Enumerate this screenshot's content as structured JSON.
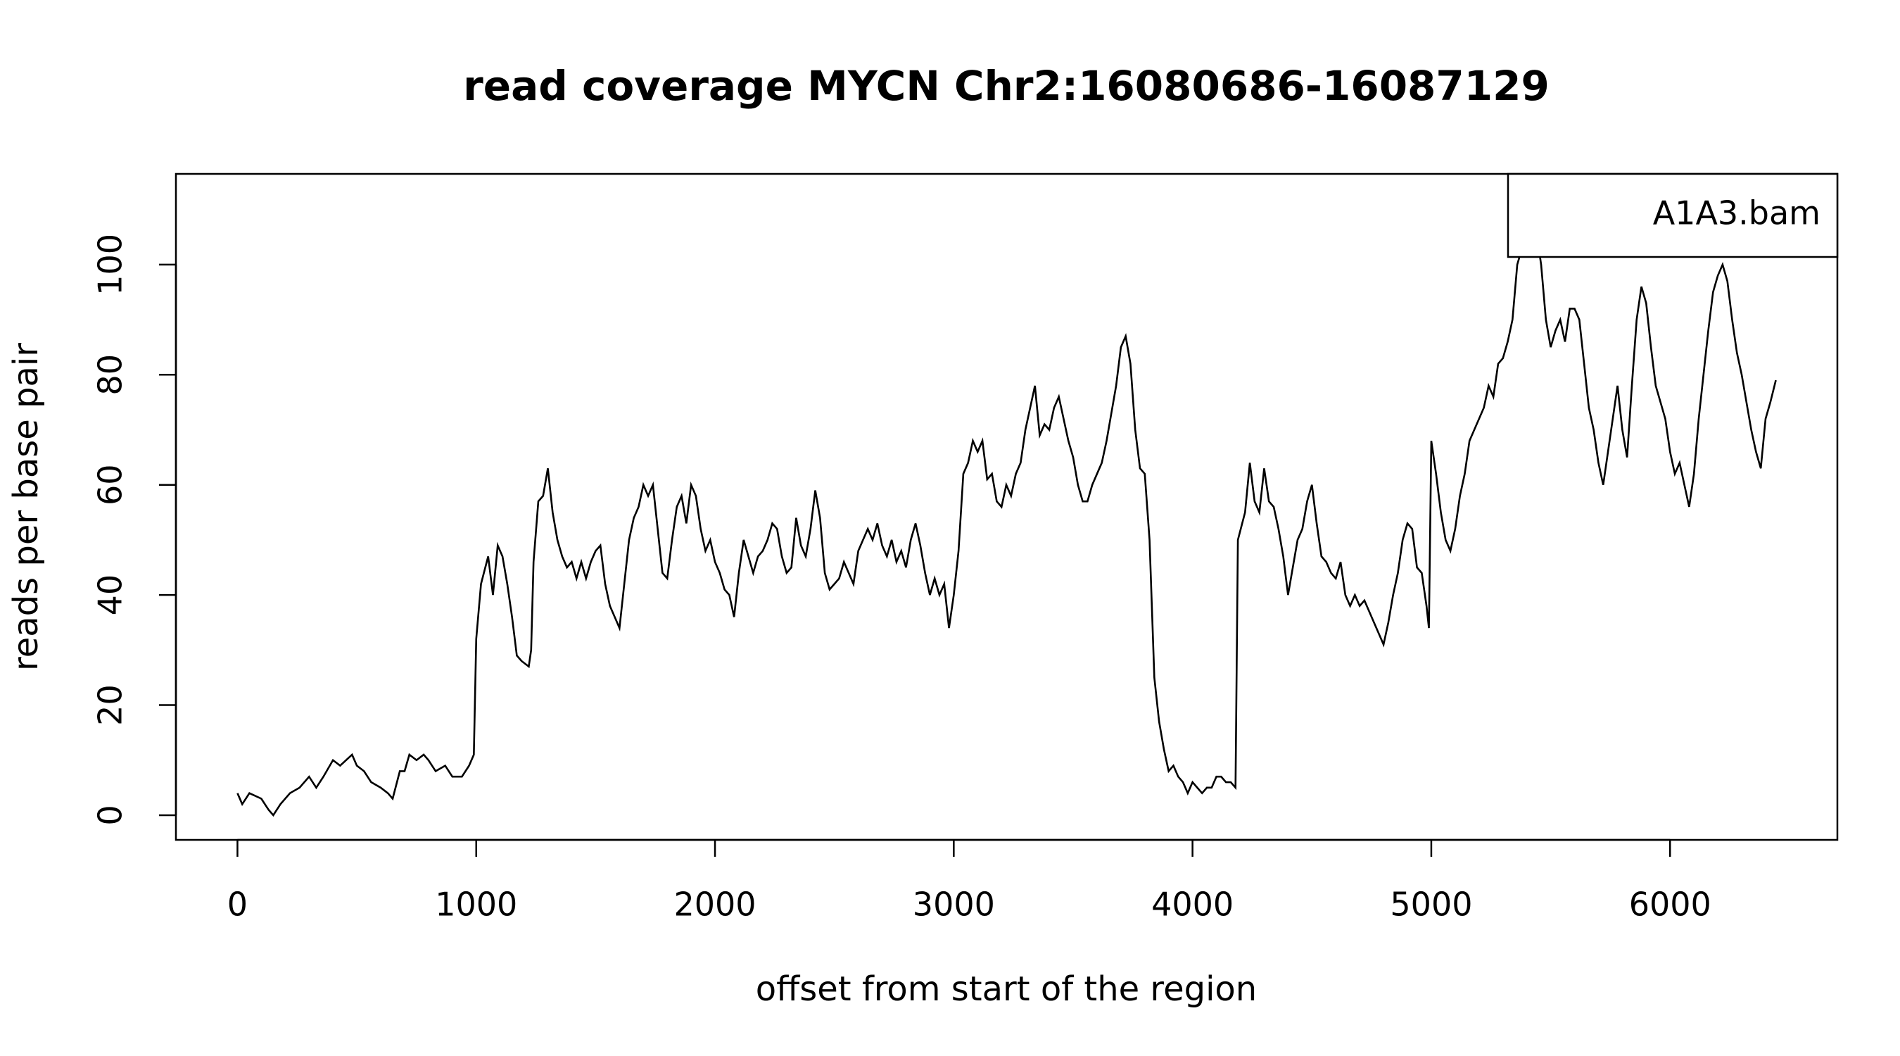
{
  "chart_data": {
    "type": "line",
    "title": "read coverage MYCN  Chr2:16080686-16087129",
    "x_label": "offset from start of the region",
    "y_label": "reads per base pair",
    "xlim": [
      -257.72,
      6700.72
    ],
    "ylim": [
      -4.48,
      116.48
    ],
    "xticks": [
      0,
      1000,
      2000,
      3000,
      4000,
      5000,
      6000
    ],
    "yticks": [
      0,
      20,
      40,
      60,
      80,
      100
    ],
    "grid": false,
    "legend": "topright",
    "x": [
      0,
      20,
      50,
      100,
      130,
      150,
      180,
      220,
      260,
      300,
      330,
      360,
      400,
      430,
      480,
      500,
      530,
      560,
      600,
      630,
      650,
      680,
      700,
      720,
      750,
      780,
      800,
      830,
      870,
      900,
      940,
      970,
      990,
      1000,
      1020,
      1050,
      1070,
      1090,
      1110,
      1130,
      1150,
      1170,
      1190,
      1220,
      1230,
      1240,
      1260,
      1280,
      1300,
      1320,
      1340,
      1360,
      1380,
      1400,
      1420,
      1440,
      1460,
      1480,
      1500,
      1520,
      1540,
      1560,
      1580,
      1600,
      1620,
      1640,
      1660,
      1680,
      1700,
      1720,
      1740,
      1760,
      1780,
      1800,
      1820,
      1840,
      1860,
      1880,
      1900,
      1920,
      1940,
      1960,
      1980,
      2000,
      2020,
      2040,
      2060,
      2080,
      2100,
      2120,
      2140,
      2160,
      2180,
      2200,
      2220,
      2240,
      2260,
      2280,
      2300,
      2320,
      2340,
      2360,
      2380,
      2400,
      2420,
      2440,
      2460,
      2480,
      2500,
      2520,
      2540,
      2560,
      2580,
      2600,
      2620,
      2640,
      2660,
      2680,
      2700,
      2720,
      2740,
      2760,
      2780,
      2800,
      2820,
      2840,
      2860,
      2880,
      2900,
      2920,
      2940,
      2960,
      2980,
      3000,
      3020,
      3040,
      3060,
      3080,
      3100,
      3120,
      3140,
      3160,
      3180,
      3200,
      3220,
      3240,
      3260,
      3280,
      3300,
      3320,
      3340,
      3360,
      3380,
      3400,
      3420,
      3440,
      3460,
      3480,
      3500,
      3520,
      3540,
      3560,
      3580,
      3600,
      3620,
      3640,
      3660,
      3680,
      3700,
      3720,
      3740,
      3760,
      3780,
      3800,
      3820,
      3840,
      3860,
      3880,
      3900,
      3920,
      3940,
      3960,
      3980,
      4000,
      4020,
      4040,
      4060,
      4080,
      4100,
      4120,
      4140,
      4160,
      4180,
      4190,
      4220,
      4240,
      4260,
      4280,
      4300,
      4320,
      4340,
      4360,
      4380,
      4400,
      4420,
      4440,
      4460,
      4480,
      4500,
      4520,
      4540,
      4560,
      4580,
      4600,
      4620,
      4640,
      4660,
      4680,
      4700,
      4720,
      4740,
      4760,
      4780,
      4800,
      4820,
      4840,
      4860,
      4880,
      4900,
      4920,
      4940,
      4960,
      4980,
      4990,
      5000,
      5020,
      5040,
      5060,
      5080,
      5100,
      5120,
      5140,
      5160,
      5180,
      5200,
      5220,
      5240,
      5260,
      5280,
      5300,
      5320,
      5340,
      5360,
      5380,
      5400,
      5420,
      5440,
      5460,
      5480,
      5500,
      5520,
      5540,
      5560,
      5580,
      5600,
      5620,
      5640,
      5660,
      5680,
      5700,
      5720,
      5740,
      5760,
      5780,
      5800,
      5820,
      5840,
      5860,
      5880,
      5900,
      5920,
      5940,
      5960,
      5980,
      6000,
      6020,
      6040,
      6060,
      6080,
      6100,
      6120,
      6140,
      6160,
      6180,
      6200,
      6220,
      6240,
      6260,
      6280,
      6300,
      6320,
      6340,
      6360,
      6380,
      6400,
      6420,
      6443
    ],
    "series": [
      {
        "name": "A1A3.bam",
        "color": "#000000",
        "values": [
          4,
          2,
          4,
          3,
          1,
          0,
          2,
          4,
          5,
          7,
          5,
          7,
          10,
          9,
          11,
          9,
          8,
          6,
          5,
          4,
          3,
          8,
          8,
          11,
          10,
          11,
          10,
          8,
          9,
          7,
          7,
          9,
          11,
          32,
          42,
          47,
          40,
          49,
          47,
          42,
          36,
          29,
          28,
          27,
          30,
          46,
          57,
          58,
          63,
          55,
          50,
          47,
          45,
          46,
          43,
          46,
          43,
          46,
          48,
          49,
          42,
          38,
          36,
          34,
          42,
          50,
          54,
          56,
          60,
          58,
          60,
          52,
          44,
          43,
          50,
          56,
          58,
          53,
          60,
          58,
          52,
          48,
          50,
          46,
          44,
          41,
          40,
          36,
          44,
          50,
          47,
          44,
          47,
          48,
          50,
          53,
          52,
          47,
          44,
          45,
          54,
          49,
          47,
          52,
          59,
          54,
          44,
          41,
          42,
          43,
          46,
          44,
          42,
          48,
          50,
          52,
          50,
          53,
          49,
          47,
          50,
          46,
          48,
          45,
          50,
          53,
          49,
          44,
          40,
          43,
          40,
          42,
          34,
          40,
          48,
          62,
          64,
          68,
          66,
          68,
          61,
          62,
          57,
          56,
          60,
          58,
          62,
          64,
          70,
          74,
          78,
          69,
          71,
          70,
          74,
          76,
          72,
          68,
          65,
          60,
          57,
          57,
          60,
          62,
          64,
          68,
          73,
          78,
          85,
          87,
          82,
          70,
          63,
          62,
          50,
          25,
          17,
          12,
          8,
          9,
          7,
          6,
          4,
          6,
          5,
          4,
          5,
          5,
          7,
          7,
          6,
          6,
          5,
          50,
          55,
          64,
          57,
          55,
          63,
          57,
          56,
          52,
          47,
          40,
          45,
          50,
          52,
          57,
          60,
          53,
          47,
          46,
          44,
          43,
          46,
          40,
          38,
          40,
          38,
          39,
          37,
          35,
          33,
          31,
          35,
          40,
          44,
          50,
          53,
          52,
          45,
          44,
          38,
          34,
          68,
          62,
          55,
          50,
          48,
          52,
          58,
          62,
          68,
          70,
          72,
          74,
          78,
          76,
          82,
          83,
          86,
          90,
          100,
          103,
          108,
          110,
          106,
          100,
          90,
          85,
          88,
          90,
          86,
          92,
          92,
          90,
          82,
          74,
          70,
          64,
          60,
          66,
          72,
          78,
          70,
          65,
          78,
          90,
          96,
          93,
          85,
          78,
          75,
          72,
          66,
          62,
          64,
          60,
          56,
          62,
          72,
          80,
          88,
          95,
          98,
          100,
          97,
          90,
          84,
          80,
          75,
          70,
          66,
          63,
          72,
          75,
          79
        ]
      }
    ]
  }
}
